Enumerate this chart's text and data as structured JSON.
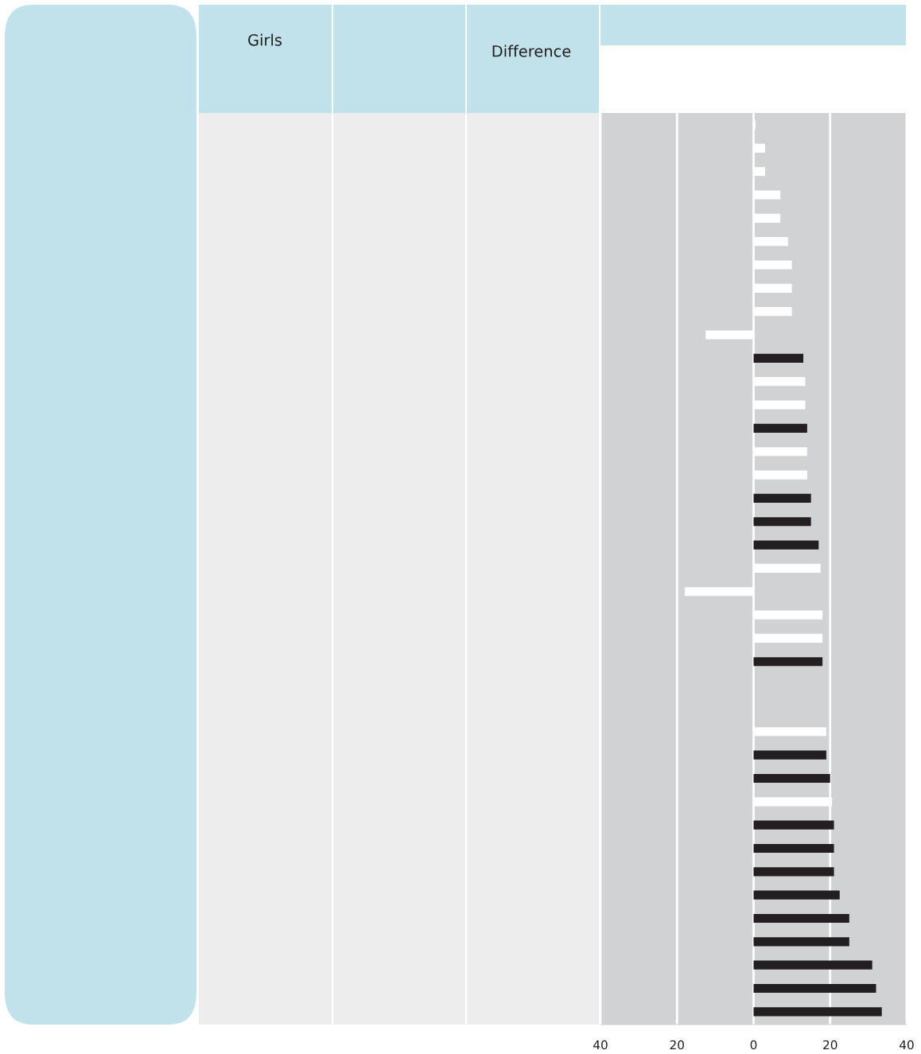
{
  "chart_data": {
    "type": "bar",
    "orientation": "horizontal",
    "categories": [
      null,
      null,
      null,
      null,
      null,
      null,
      null,
      null,
      null,
      null,
      null,
      null,
      null,
      null,
      null,
      null,
      null,
      null,
      null,
      null,
      null,
      null,
      null,
      null,
      null,
      null,
      null,
      null,
      null,
      null,
      null,
      null,
      null,
      null,
      null,
      null,
      null,
      null,
      null
    ],
    "values": [
      0.5,
      3,
      3,
      7,
      7,
      9,
      10,
      10,
      10,
      -12.5,
      13,
      13.5,
      13.5,
      14,
      14,
      14,
      15,
      15,
      17,
      17.5,
      -18,
      18,
      18,
      18,
      null,
      null,
      19,
      19,
      20,
      20.5,
      21,
      21,
      21,
      22.5,
      25,
      25,
      31,
      32,
      33.5
    ],
    "colors": [
      "#ffffff",
      "#ffffff",
      "#ffffff",
      "#ffffff",
      "#ffffff",
      "#ffffff",
      "#ffffff",
      "#ffffff",
      "#ffffff",
      "#ffffff",
      "#231f20",
      "#ffffff",
      "#ffffff",
      "#231f20",
      "#ffffff",
      "#ffffff",
      "#231f20",
      "#231f20",
      "#231f20",
      "#ffffff",
      "#ffffff",
      "#ffffff",
      "#ffffff",
      "#231f20",
      "#ffffff",
      "#ffffff",
      "#ffffff",
      "#231f20",
      "#231f20",
      "#ffffff",
      "#231f20",
      "#231f20",
      "#231f20",
      "#231f20",
      "#231f20",
      "#231f20",
      "#231f20",
      "#231f20",
      "#231f20"
    ],
    "xlim": [
      -40,
      40
    ],
    "xticks": [
      {
        "value": -40,
        "label": "40"
      },
      {
        "value": -20,
        "label": "20"
      },
      0,
      20,
      40
    ],
    "grid": "x",
    "tick_labels": "x",
    "annotations": [
      "Girls",
      "Difference"
    ]
  }
}
